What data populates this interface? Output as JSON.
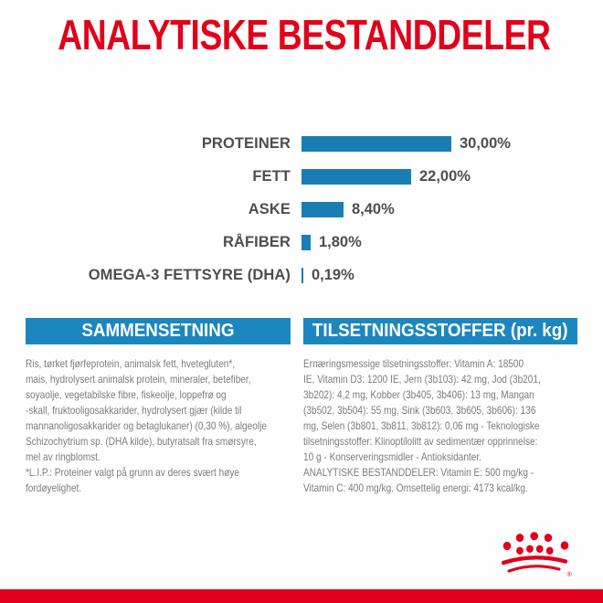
{
  "title": "ANALYTISKE BESTANDDELER",
  "colors": {
    "brand_red": "#e2001a",
    "bar_blue": "#1a7eb4",
    "header_blue": "#1c87bf",
    "label_gray": "#4d4e50",
    "body_gray": "#7b7c7f"
  },
  "chart_data": {
    "type": "bar",
    "orientation": "horizontal",
    "title": "ANALYTISKE BESTANDDELER",
    "categories": [
      "PROTEINER",
      "FETT",
      "ASKE",
      "RÅFIBER",
      "OMEGA-3 FETTSYRE (DHA)"
    ],
    "values": [
      30.0,
      22.0,
      8.4,
      1.8,
      0.19
    ],
    "value_labels": [
      "30,00%",
      "22,00%",
      "8,40%",
      "1,80%",
      "0,19%"
    ],
    "unit": "%",
    "xlim": [
      0,
      30
    ],
    "bar_color": "#1a7eb4",
    "grid": false,
    "legend": false
  },
  "sections": {
    "composition": {
      "header": "SAMMENSETNING",
      "body": "Ris, tørket fjørfeprotein, animalsk fett, hvetegluten*,\nmais, hydrolysert animalsk protein, mineraler, betefiber,\nsoyaolje, vegetabilske fibre, fiskeolje, loppefrø og\n-skall, fruktooligosakkarider, hydrolysert gjær (kilde til\nmannanoligosakkarider og betaglukaner) (0,30 %), algeolje\nSchizochytrium sp. (DHA kilde), butyratsalt fra smørsyre,\nmel av ringblomst.",
      "footnote": "*L.I.P.: Proteiner valgt på grunn av deres svært høye\nfordøyelighet."
    },
    "additives": {
      "header": "TILSETNINGSSTOFFER (pr. kg)",
      "body": "Ernæringsmessige tilsetningsstoffer: Vitamin A: 18500\nIE, Vitamin D3: 1200 IE, Jern (3b103): 42 mg, Jod (3b201,\n3b202): 4,2 mg, Kobber (3b405, 3b406): 13 mg, Mangan\n(3b502, 3b504): 55 mg, Sink (3b603, 3b605, 3b606): 136\nmg, Selen (3b801, 3b811, 3b812): 0,06 mg - Teknologiske\ntilsetningsstoffer: Klinoptilolitt av sedimentær opprinnelse:\n10 g - Konserveringsmidler - Antioksidanter.",
      "analytical": "ANALYTISKE BESTANDDELER: Vitamin E: 500 mg/kg -\nVitamin C: 400 mg/kg. Omsettelig energi: 4173 kcal/kg."
    }
  },
  "footer": {
    "logo": "royal-canin-crown",
    "registered_mark": "®"
  }
}
